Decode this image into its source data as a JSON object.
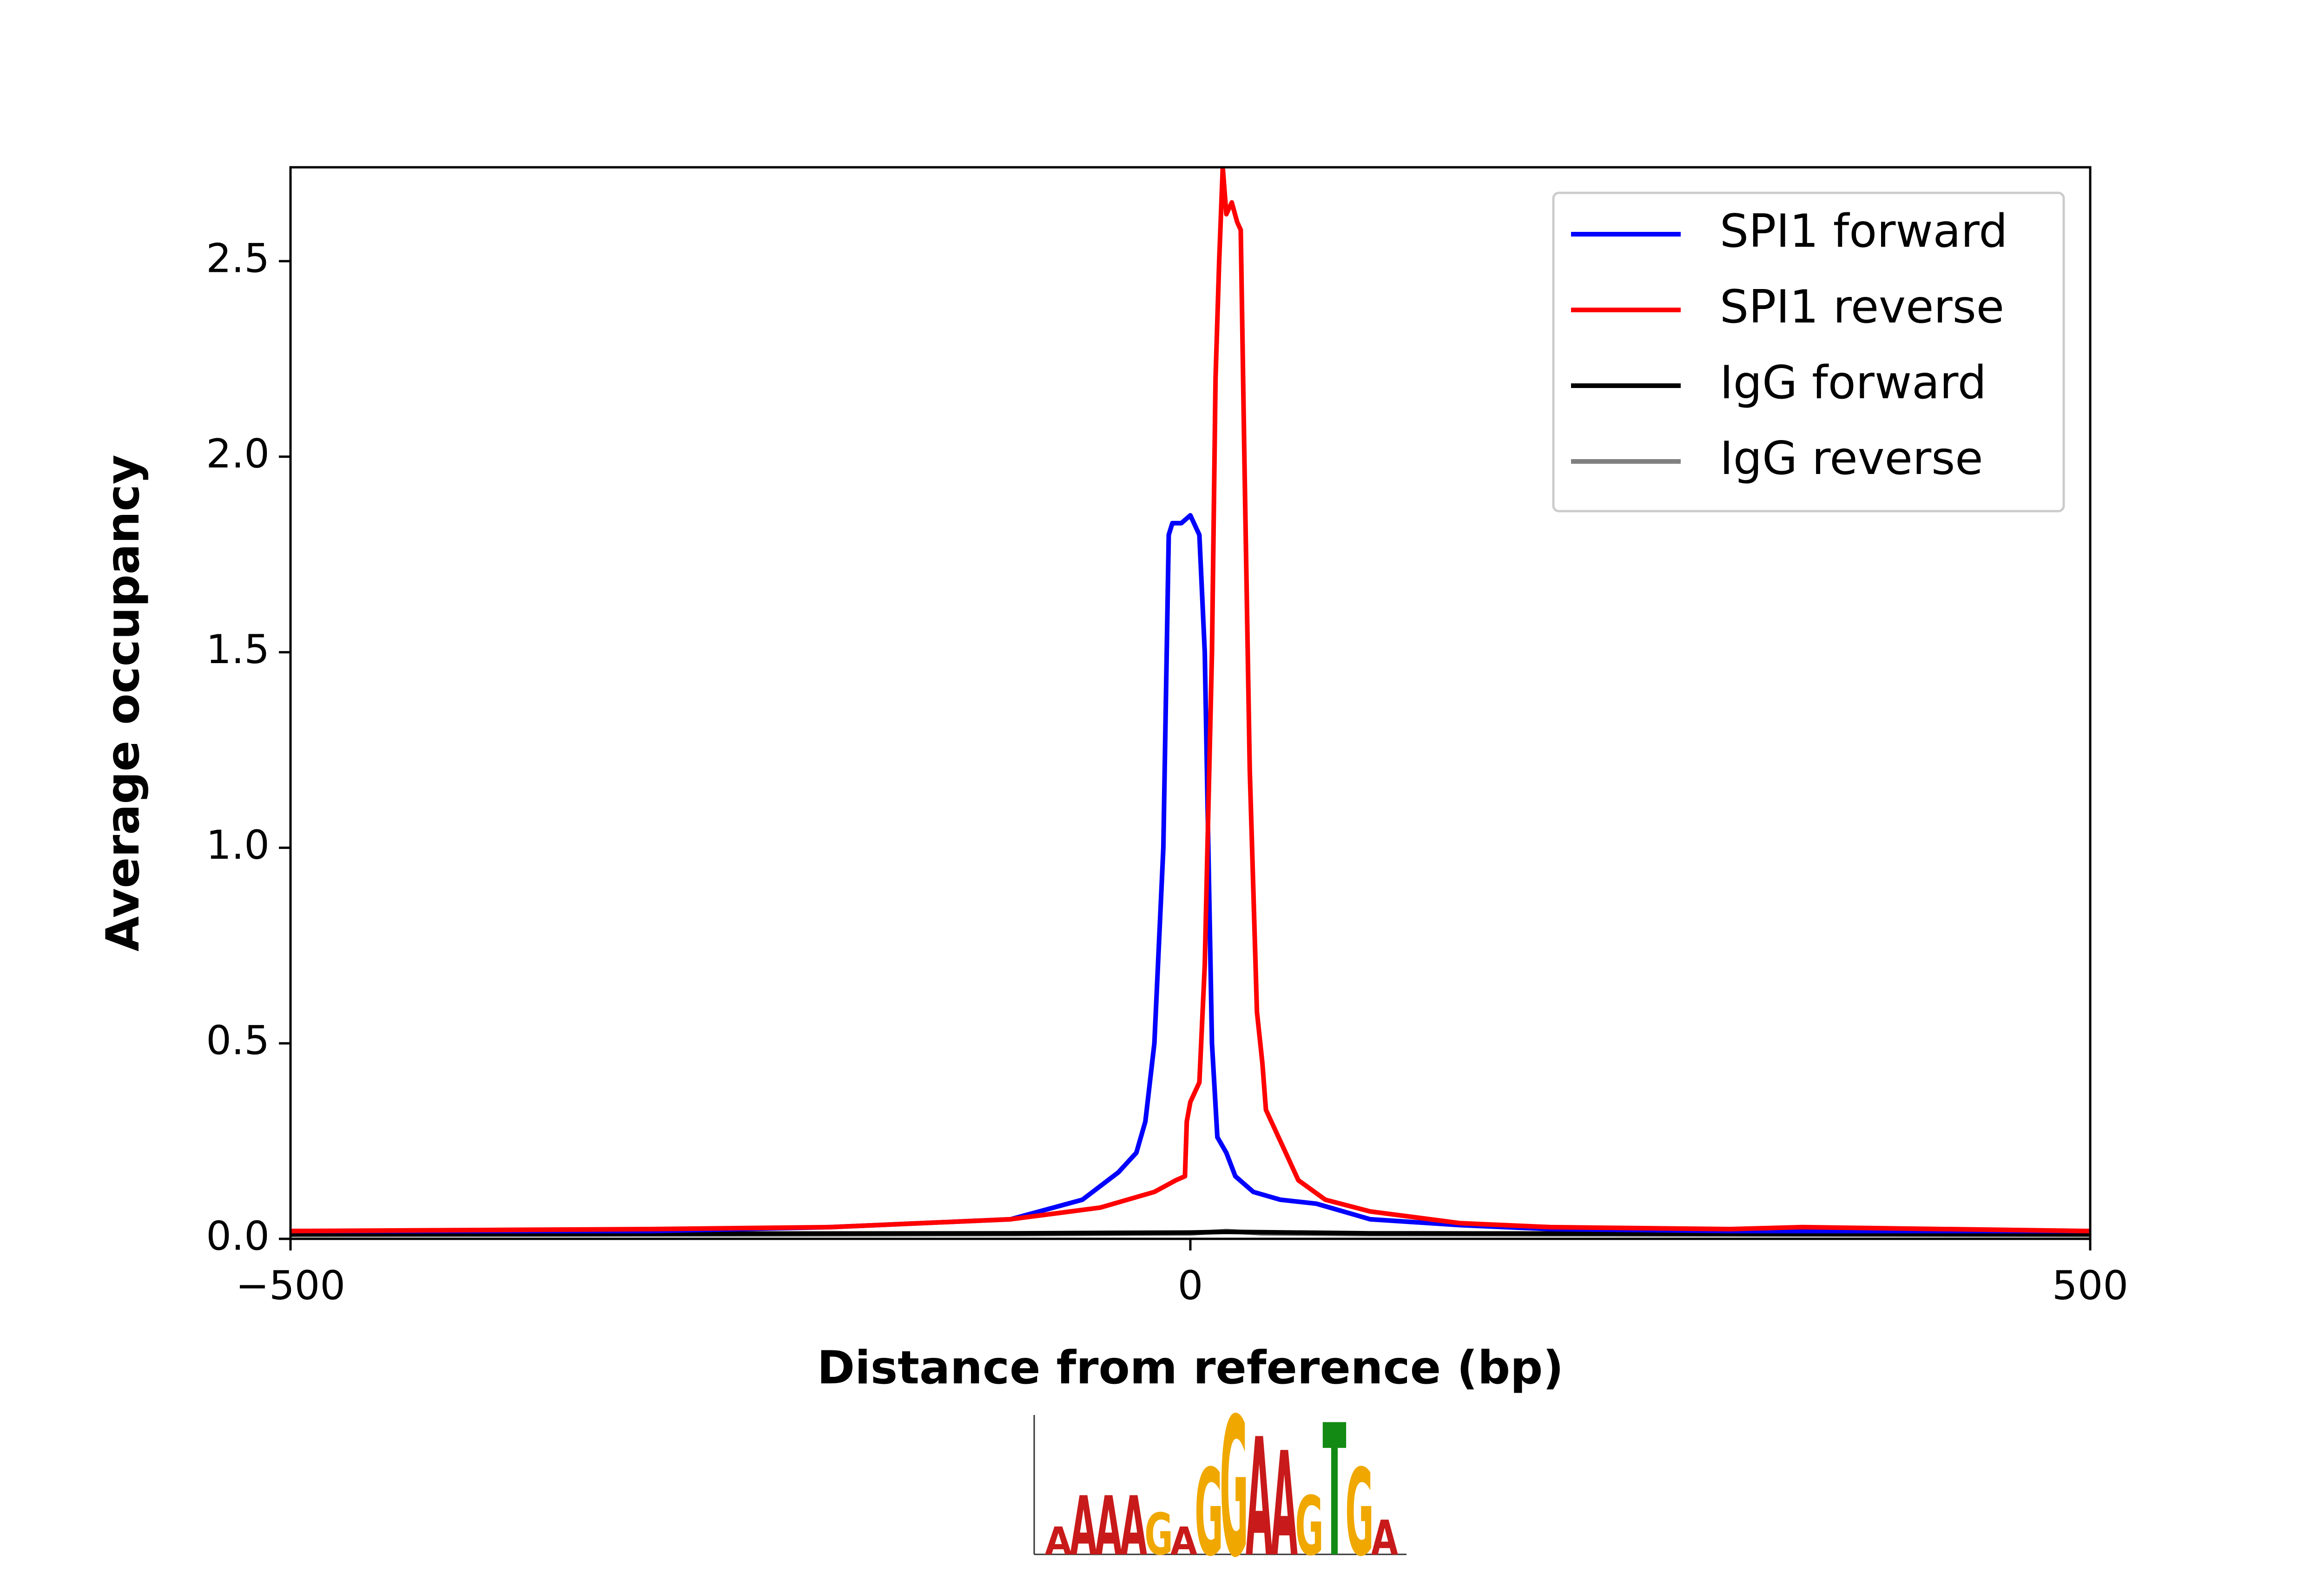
{
  "chart_data": {
    "type": "line",
    "xlabel": "Distance from reference (bp)",
    "ylabel": "Average occupancy",
    "xlim": [
      -500,
      500
    ],
    "ylim": [
      0,
      2.74
    ],
    "xticks": [
      {
        "value": -500,
        "label": "−500"
      },
      0,
      500
    ],
    "yticks": [
      {
        "value": 0,
        "label": "0.0"
      },
      0.5,
      {
        "value": 1,
        "label": "1.0"
      },
      1.5,
      {
        "value": 2,
        "label": "2.0"
      },
      2.5
    ],
    "legend": "upper right",
    "series": [
      {
        "name": "SPI1 forward",
        "color": "#0000ff",
        "x": [
          -500,
          -300,
          -200,
          -100,
          -60,
          -40,
          -30,
          -25,
          -20,
          -15,
          -12,
          -10,
          -5,
          0,
          5,
          8,
          10,
          12,
          15,
          20,
          25,
          35,
          50,
          70,
          100,
          150,
          200,
          300,
          500
        ],
        "values": [
          0.02,
          0.02,
          0.03,
          0.05,
          0.1,
          0.17,
          0.22,
          0.3,
          0.5,
          1.0,
          1.8,
          1.83,
          1.83,
          1.85,
          1.8,
          1.5,
          1.0,
          0.5,
          0.26,
          0.22,
          0.16,
          0.12,
          0.1,
          0.09,
          0.05,
          0.035,
          0.025,
          0.02,
          0.02
        ]
      },
      {
        "name": "SPI1 reverse",
        "color": "#ff0000",
        "x": [
          -500,
          -300,
          -200,
          -100,
          -50,
          -20,
          -8,
          -3,
          -2,
          0,
          5,
          8,
          12,
          14,
          16,
          18,
          20,
          23,
          26,
          28,
          30,
          33,
          37,
          40,
          42,
          50,
          60,
          75,
          100,
          150,
          200,
          300,
          340,
          500
        ],
        "values": [
          0.02,
          0.025,
          0.03,
          0.05,
          0.08,
          0.12,
          0.15,
          0.16,
          0.3,
          0.35,
          0.4,
          0.7,
          1.5,
          2.2,
          2.5,
          2.74,
          2.62,
          2.65,
          2.6,
          2.58,
          2.0,
          1.2,
          0.58,
          0.45,
          0.33,
          0.25,
          0.15,
          0.1,
          0.07,
          0.04,
          0.03,
          0.025,
          0.03,
          0.02
        ]
      },
      {
        "name": "IgG forward",
        "color": "#000000",
        "x": [
          -500,
          -100,
          0,
          20,
          100,
          500
        ],
        "values": [
          0.012,
          0.014,
          0.016,
          0.018,
          0.014,
          0.012
        ]
      },
      {
        "name": "IgG reverse",
        "color": "#808080",
        "x": [
          -500,
          -100,
          0,
          20,
          40,
          100,
          500
        ],
        "values": [
          0.01,
          0.012,
          0.014,
          0.02,
          0.014,
          0.012,
          0.01
        ]
      }
    ]
  },
  "motif_logo": {
    "letters": [
      "A",
      "A",
      "A",
      "A",
      "G",
      "A",
      "G",
      "G",
      "A",
      "A",
      "G",
      "T",
      "G",
      "A"
    ],
    "heights": [
      0.4,
      0.85,
      0.85,
      0.85,
      0.6,
      0.4,
      1.25,
      2.0,
      1.7,
      1.5,
      0.85,
      1.9,
      1.25,
      0.5
    ]
  }
}
